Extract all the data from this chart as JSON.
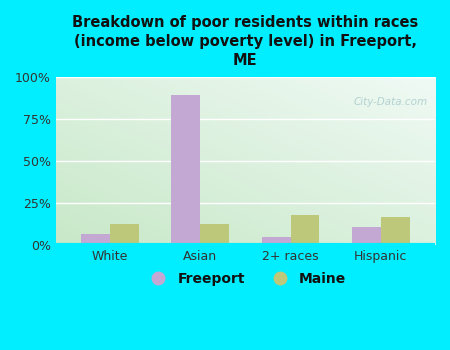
{
  "title": "Breakdown of poor residents within races\n(income below poverty level) in Freeport,\nME",
  "categories": [
    "White",
    "Asian",
    "2+ races",
    "Hispanic"
  ],
  "freeport_values": [
    7,
    89,
    5,
    11
  ],
  "maine_values": [
    13,
    13,
    18,
    17
  ],
  "freeport_color": "#c4a8d4",
  "maine_color": "#bec87a",
  "background_outer": "#00eeff",
  "background_inner_left": "#c8e8c8",
  "background_inner_right": "#eaf5f0",
  "ylim": [
    0,
    100
  ],
  "yticks": [
    0,
    25,
    50,
    75,
    100
  ],
  "ytick_labels": [
    "0%",
    "25%",
    "50%",
    "75%",
    "100%"
  ],
  "bar_width": 0.32,
  "legend_freeport": "Freeport",
  "legend_maine": "Maine",
  "watermark": "City-Data.com",
  "tick_label_color": "#333333",
  "title_color": "#111111"
}
